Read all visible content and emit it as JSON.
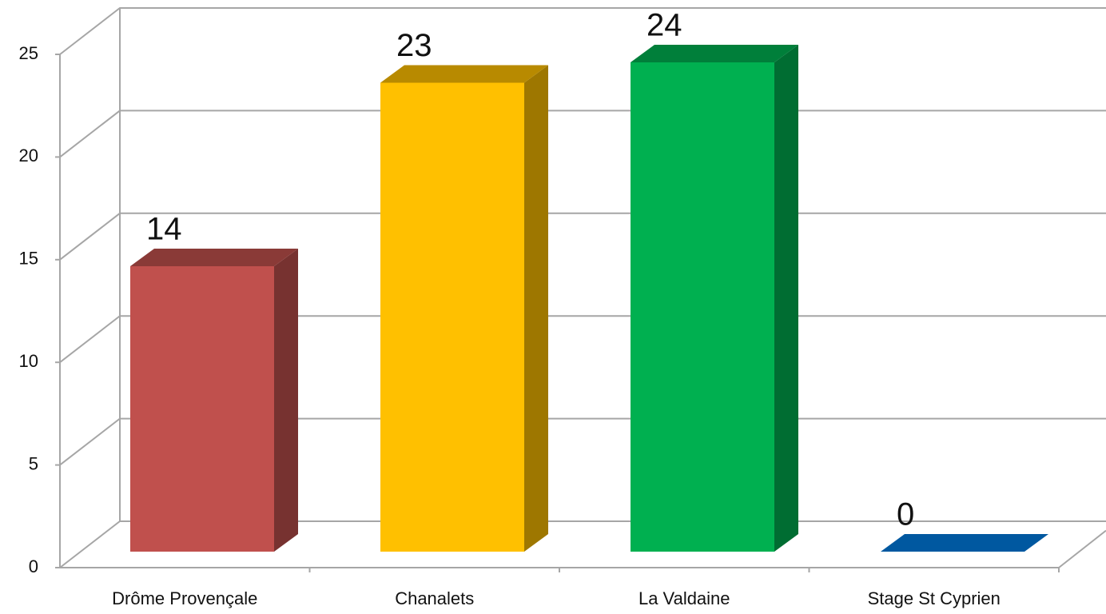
{
  "chart_data": {
    "type": "bar3d",
    "categories": [
      "Drôme Provençale",
      "Chanalets",
      "La Valdaine",
      "Stage St Cyprien"
    ],
    "values": [
      14,
      23,
      24,
      0
    ],
    "colors": [
      "#c0504d",
      "#ffc000",
      "#00b050",
      "#0058a0"
    ],
    "ylim": [
      0,
      25
    ],
    "yticks": [
      0,
      5,
      10,
      15,
      20,
      25
    ],
    "grid": true
  }
}
